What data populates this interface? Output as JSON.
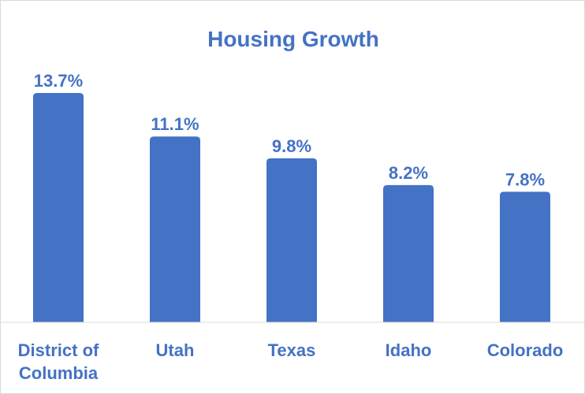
{
  "chart_data": {
    "type": "bar",
    "title": "Housing Growth",
    "categories": [
      "District of Columbia",
      "Utah",
      "Texas",
      "Idaho",
      "Colorado"
    ],
    "category_lines": [
      [
        "District of",
        "Columbia"
      ],
      [
        "Utah"
      ],
      [
        "Texas"
      ],
      [
        "Idaho"
      ],
      [
        "Colorado"
      ]
    ],
    "values": [
      13.7,
      11.1,
      9.8,
      8.2,
      7.8
    ],
    "data_labels": [
      "13.7%",
      "11.1%",
      "9.8%",
      "8.2%",
      "7.8%"
    ],
    "unit": "%",
    "ylim": [
      0,
      14.3
    ],
    "grid": false,
    "legend": "none",
    "bar_color": "#4472c4",
    "text_color": "#4472c4"
  }
}
